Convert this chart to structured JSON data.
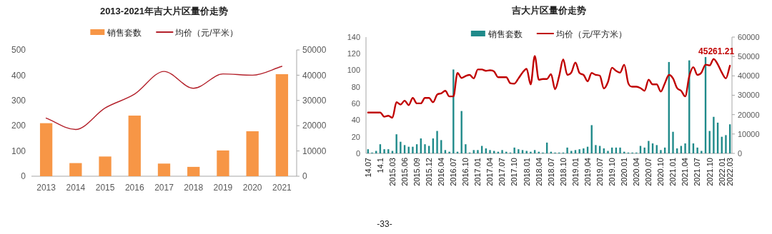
{
  "chart_data": [
    {
      "type": "bar",
      "title": "2013-2021年吉大片区量价走势",
      "categories": [
        "2013",
        "2014",
        "2015",
        "2016",
        "2017",
        "2018",
        "2019",
        "2020",
        "2021"
      ],
      "series": [
        {
          "name": "销售套数",
          "color": "#f79646",
          "values": [
            210,
            52,
            78,
            240,
            50,
            37,
            102,
            178,
            404
          ]
        },
        {
          "name": "均价（元/平米）",
          "type": "line",
          "axis": "y2",
          "color": "#b3202a",
          "values": [
            23000,
            18500,
            27000,
            32500,
            41500,
            34800,
            40500,
            40000,
            43500
          ]
        }
      ],
      "ylim": [
        0,
        500
      ],
      "yticks": [
        0,
        100,
        200,
        300,
        400,
        500
      ],
      "y2lim": [
        0,
        50000
      ],
      "y2ticks": [
        0,
        10000,
        20000,
        30000,
        40000,
        50000
      ],
      "legend": "top"
    },
    {
      "type": "bar",
      "title": "吉大片区量价走势",
      "categories": [
        "14.07",
        null,
        null,
        "14.1",
        null,
        null,
        "2015.03",
        null,
        null,
        "2015.06",
        null,
        null,
        "2015.09",
        null,
        null,
        "2015.12",
        null,
        null,
        "2016.04",
        null,
        null,
        "2016.07",
        null,
        null,
        "2016.10",
        null,
        null,
        "2017.01",
        null,
        null,
        "2017.04",
        null,
        null,
        "2017.07",
        null,
        null,
        "2017.10",
        null,
        null,
        "2018.01",
        null,
        null,
        "2018.04",
        null,
        null,
        "2018.07",
        null,
        null,
        "2018.10",
        null,
        null,
        "2019.01",
        null,
        null,
        "2019.04",
        null,
        null,
        "2019.07",
        null,
        null,
        "2019.10",
        null,
        null,
        "2020.01",
        null,
        null,
        "2020.04",
        null,
        null,
        "2020.07",
        null,
        null,
        "2020.10",
        null,
        null,
        "2021.01",
        null,
        null,
        "2021.04",
        null,
        null,
        "2021.07",
        null,
        null,
        "2021.10",
        null,
        null,
        "2022.01",
        null,
        "2022.03"
      ],
      "series": [
        {
          "name": "销售套数",
          "color": "#1f8a8a",
          "values": [
            5,
            1,
            3,
            11,
            5,
            5,
            3,
            23,
            14,
            10,
            8,
            8,
            11,
            18,
            11,
            9,
            18,
            27,
            16,
            4,
            2,
            101,
            2,
            51,
            11,
            1,
            4,
            4,
            9,
            6,
            4,
            3,
            2,
            4,
            2,
            1,
            7,
            5,
            4,
            3,
            2,
            4,
            2,
            1,
            13,
            2,
            1,
            1,
            1,
            7,
            3,
            4,
            5,
            6,
            8,
            34,
            10,
            9,
            6,
            3,
            7,
            7,
            7,
            2,
            1,
            1,
            1,
            9,
            7,
            15,
            12,
            10,
            4,
            7,
            110,
            26,
            6,
            9,
            12,
            112,
            12,
            7,
            3,
            116,
            27,
            44,
            37,
            20,
            22,
            35
          ]
        },
        {
          "name": "均价（元/平方米）",
          "type": "line",
          "axis": "y2",
          "color": "#c00000",
          "values": [
            21100,
            21100,
            21100,
            21100,
            18900,
            19400,
            18400,
            26400,
            25200,
            27200,
            24900,
            28600,
            25800,
            25800,
            28600,
            28600,
            26400,
            30300,
            31000,
            32300,
            29400,
            29400,
            41500,
            38900,
            39900,
            40500,
            38700,
            43300,
            43300,
            42600,
            42900,
            42300,
            39300,
            39300,
            39300,
            36200,
            36000,
            38700,
            41700,
            43600,
            35600,
            50300,
            38000,
            38400,
            38400,
            40900,
            33100,
            39900,
            48500,
            40500,
            41700,
            46900,
            41500,
            40500,
            37200,
            41500,
            40500,
            40100,
            33500,
            36800,
            44200,
            42600,
            41700,
            45800,
            36200,
            34400,
            34400,
            33700,
            32300,
            38000,
            35600,
            35600,
            31900,
            36200,
            40500,
            38700,
            33700,
            32300,
            29400,
            39900,
            44500,
            40500,
            41700,
            45800,
            45400,
            48700,
            46000,
            41700,
            38700,
            45261.21
          ],
          "value_labels": [
            null,
            null,
            null,
            null,
            null,
            null,
            null,
            null,
            null,
            null,
            null,
            null,
            null,
            null,
            null,
            null,
            null,
            null,
            null,
            null,
            null,
            null,
            null,
            null,
            null,
            null,
            null,
            null,
            null,
            null,
            null,
            null,
            null,
            null,
            null,
            null,
            null,
            null,
            null,
            null,
            null,
            null,
            null,
            null,
            null,
            null,
            null,
            null,
            null,
            null,
            null,
            null,
            null,
            null,
            null,
            null,
            null,
            null,
            null,
            null,
            null,
            null,
            null,
            null,
            null,
            null,
            null,
            null,
            null,
            null,
            null,
            null,
            null,
            null,
            null,
            null,
            null,
            null,
            null,
            null,
            null,
            null,
            null,
            null,
            null,
            null,
            null,
            null,
            null,
            "45261.21"
          ]
        }
      ],
      "ylim": [
        0,
        140
      ],
      "yticks": [
        0,
        20,
        40,
        60,
        80,
        100,
        120,
        140
      ],
      "y2lim": [
        0,
        60000
      ],
      "y2ticks": [
        0,
        10000,
        20000,
        30000,
        40000,
        50000,
        60000
      ],
      "legend": "top",
      "annotations": [
        "-33-"
      ]
    }
  ]
}
